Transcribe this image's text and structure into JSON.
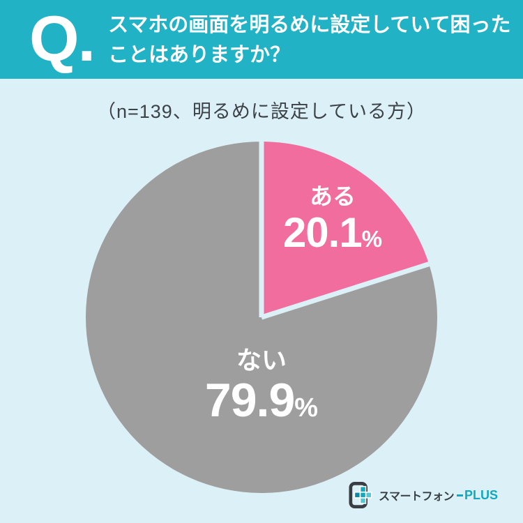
{
  "page": {
    "bg_color": "#dcf1f7"
  },
  "header": {
    "bg_color": "#21b2c6",
    "q_mark": "Q.",
    "question_line1": "スマホの画面を明るめに設定していて困った",
    "question_line2": "ことはありますか？",
    "text_color": "#ffffff"
  },
  "survey_note": "（n=139、明るめに設定している方）",
  "survey_note_color": "#3c4247",
  "chart_data": {
    "type": "pie",
    "title": "スマホの画面を明るめに設定していて困ったことはありますか？",
    "subtitle": "（n=139、明るめに設定している方）",
    "sample_size": 139,
    "start_angle_deg": 0,
    "direction": "clockwise",
    "slices": [
      {
        "label": "ある",
        "value": 20.1,
        "display_value": "20.1",
        "unit": "%",
        "color": "#f16d9d"
      },
      {
        "label": "ない",
        "value": 79.9,
        "display_value": "79.9",
        "unit": "%",
        "color": "#9e9e9e"
      }
    ],
    "separator_color": "#dcf1f7",
    "label_color": "#ffffff",
    "legend": "labels drawn inside slices"
  },
  "logo": {
    "brand_jp": "スマートフォン",
    "brand_en": "PLUS",
    "jp_color": "#383e44",
    "en_color": "#12a9be",
    "icon": "smartphone-plus-icon",
    "icon_dark": "#383e44",
    "icon_teal_1": "#12a9be",
    "icon_teal_2": "#0d8aa3",
    "icon_teal_3": "#55c6d6"
  }
}
